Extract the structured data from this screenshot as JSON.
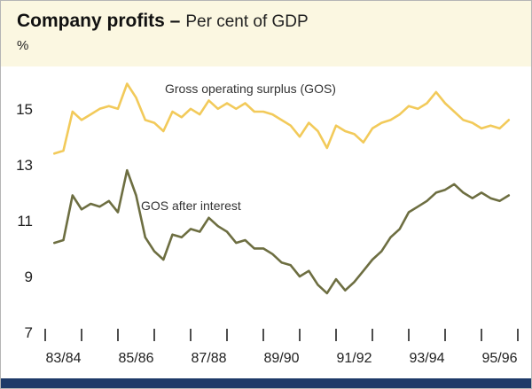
{
  "header": {
    "title": "Company profits –",
    "subtitle": "Per cent of GDP",
    "unit": "%"
  },
  "colors": {
    "header_band": "#FBF7E1",
    "bottom_bar": "#1E3A68",
    "gos_line": "#F2CA5A",
    "gos_after_interest_line": "#6D6E41",
    "axis_text": "#222222",
    "annotation_text": "#333333"
  },
  "chart_data": {
    "type": "line",
    "title": "Company profits",
    "subtitle": "Per cent of GDP",
    "ylabel": "%",
    "ylim": [
      7,
      16.2
    ],
    "yticks": [
      7,
      9,
      11,
      13,
      15
    ],
    "grid": false,
    "legend_position": "inline-annotations",
    "x_tick_years": [
      83,
      84,
      85,
      86,
      87,
      88,
      89,
      90,
      91,
      92,
      93,
      94,
      95,
      96
    ],
    "x_tick_labels": [
      "83/84",
      "85/86",
      "87/88",
      "89/90",
      "91/92",
      "93/94",
      "95/96"
    ],
    "x_label_center_years": [
      83.5,
      85.5,
      87.5,
      89.5,
      91.5,
      93.5,
      95.5
    ],
    "series": [
      {
        "name": "Gross operating surplus (GOS)",
        "color": "#F2CA5A",
        "x_start": 83.25,
        "x_step": 0.25,
        "values": [
          13.4,
          13.5,
          14.9,
          14.6,
          14.8,
          15.0,
          15.1,
          15.0,
          15.9,
          15.4,
          14.6,
          14.5,
          14.2,
          14.9,
          14.7,
          15.0,
          14.8,
          15.3,
          15.0,
          15.2,
          15.0,
          15.2,
          14.9,
          14.9,
          14.8,
          14.6,
          14.4,
          14.0,
          14.5,
          14.2,
          13.6,
          14.4,
          14.2,
          14.1,
          13.8,
          14.3,
          14.5,
          14.6,
          14.8,
          15.1,
          15.0,
          15.2,
          15.6,
          15.2,
          14.9,
          14.6,
          14.5,
          14.3,
          14.4,
          14.3,
          14.6
        ]
      },
      {
        "name": "GOS after interest",
        "color": "#6D6E41",
        "x_start": 83.25,
        "x_step": 0.25,
        "values": [
          10.2,
          10.3,
          11.9,
          11.4,
          11.6,
          11.5,
          11.7,
          11.3,
          12.8,
          11.9,
          10.4,
          9.9,
          9.6,
          10.5,
          10.4,
          10.7,
          10.6,
          11.1,
          10.8,
          10.6,
          10.2,
          10.3,
          10.0,
          10.0,
          9.8,
          9.5,
          9.4,
          9.0,
          9.2,
          8.7,
          8.4,
          8.9,
          8.5,
          8.8,
          9.2,
          9.6,
          9.9,
          10.4,
          10.7,
          11.3,
          11.5,
          11.7,
          12.0,
          12.1,
          12.3,
          12.0,
          11.8,
          12.0,
          11.8,
          11.7,
          11.9
        ]
      }
    ]
  }
}
